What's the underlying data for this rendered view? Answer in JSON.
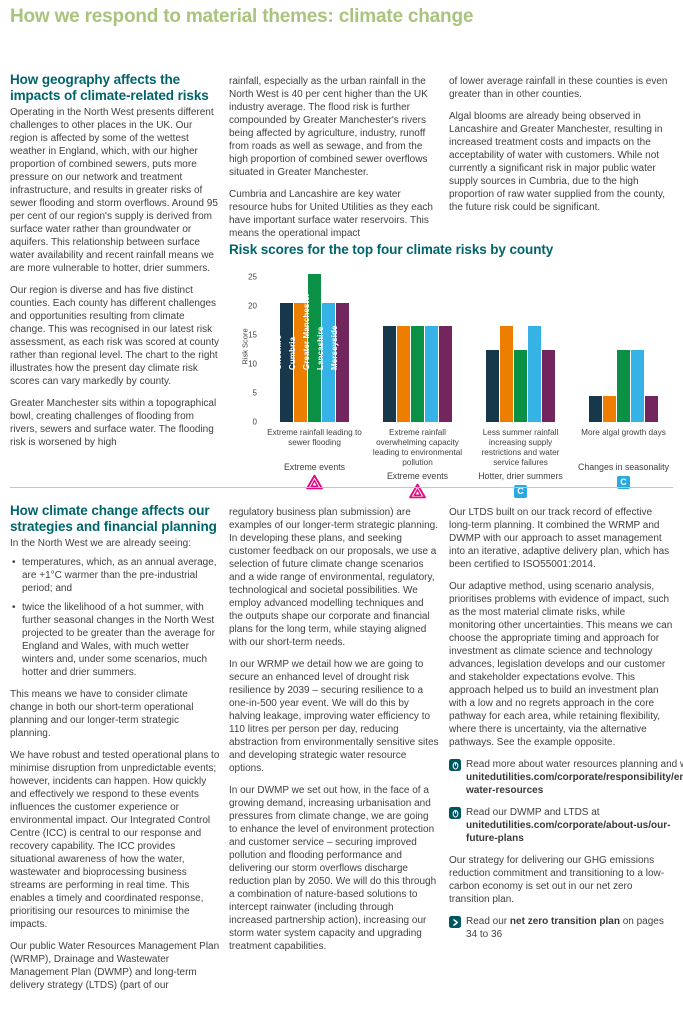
{
  "page": {
    "title": "How we respond to material themes: climate change"
  },
  "top": {
    "heading": "How geography affects the impacts of climate-related risks",
    "col1": [
      "Operating in the North West presents different challenges to other places in the UK. Our region is affected by some of the wettest weather in England, which, with our higher proportion of combined sewers, puts more pressure on our network and treatment infrastructure, and results in greater risks of sewer flooding and storm overflows. Around 95 per cent of our region's supply is derived from surface water rather than groundwater or aquifers. This relationship between surface water availability and recent rainfall means we are more vulnerable to hotter, drier summers.",
      "Our region is diverse and has five distinct counties. Each county has different challenges and opportunities resulting from climate change. This was recognised in our latest risk assessment, as each risk was scored at county rather than regional level. The chart to the right illustrates how the present day climate risk scores can vary markedly by county.",
      "Greater Manchester sits within a topographical bowl, creating challenges of flooding from rivers, sewers and surface water. The flooding risk is worsened by high"
    ],
    "col2": [
      "rainfall, especially as the urban rainfall in the North West is 40 per cent higher than the UK industry average. The flood risk is further compounded by Greater Manchester's rivers being affected by agriculture, industry, runoff from roads as well as sewage, and from the high proportion of combined sewer overflows situated in Greater Manchester.",
      "Cumbria and Lancashire are key water resource hubs for United Utilities as they each have important surface water reservoirs. This means the operational impact"
    ],
    "col3": [
      "of lower average rainfall in these counties is even greater than in other counties.",
      "Algal blooms are already being observed in Lancashire and Greater Manchester, resulting in increased treatment costs and impacts on the acceptability of water with customers. While not currently a significant risk in major public water supply sources in Cumbria, due to the high proportion of raw water supplied from the county, the future risk could be significant."
    ]
  },
  "chart_data": {
    "type": "bar",
    "title": "Risk scores for the top four climate risks by county",
    "ylabel": "Risk Score",
    "ylim": [
      0,
      25
    ],
    "yticks": [
      0,
      5,
      10,
      15,
      20,
      25
    ],
    "grid": false,
    "legend_position": "labels-inside-first-group-bars",
    "categories": [
      "Extreme rainfall leading to sewer flooding",
      "Extreme rainfall overwhelming capacity leading to environmental pollution",
      "Less summer rainfall increasing supply restrictions and water service failures",
      "More algal growth days"
    ],
    "series": [
      {
        "name": "Cheshire",
        "color": "#16384a",
        "values": [
          20.5,
          16.5,
          12.5,
          4.5
        ]
      },
      {
        "name": "Cumbria",
        "color": "#ee7e00",
        "values": [
          20.5,
          16.5,
          16.5,
          4.5
        ]
      },
      {
        "name": "Greater Manchester",
        "color": "#0b9145",
        "values": [
          25.5,
          16.5,
          12.5,
          12.5
        ]
      },
      {
        "name": "Lancashire",
        "color": "#35b3e6",
        "values": [
          20.5,
          16.5,
          16.5,
          12.5
        ]
      },
      {
        "name": "Merseyside",
        "color": "#73265e",
        "values": [
          20.5,
          16.5,
          12.5,
          4.5
        ]
      }
    ],
    "risk_labels": [
      {
        "label": "Extreme events",
        "icon": "warning-triangle-icon"
      },
      {
        "label": "Extreme events",
        "icon": "warning-triangle-icon"
      },
      {
        "label": "Hotter, drier summers",
        "icon": "c-badge-icon",
        "badge": "C"
      },
      {
        "label": "Changes in seasonality",
        "icon": "c-badge-icon",
        "badge": "C"
      }
    ],
    "icon_colors": {
      "warning_triangle": "#e5077d",
      "c_badge": "#29a9e0"
    }
  },
  "bottom": {
    "heading": "How climate change affects our strategies and financial planning",
    "col1": {
      "intro": "In the North West we are already seeing:",
      "bullets": [
        "temperatures, which, as an annual average, are +1°C warmer than the pre-industrial period; and",
        "twice the likelihood of a hot summer, with further seasonal changes in the North West projected to be greater than the average for England and Wales, with much wetter winters and, under some scenarios, much hotter and drier summers."
      ],
      "paras": [
        "This means we have to consider climate change in both our short-term operational planning and our longer-term strategic planning.",
        "We have robust and tested operational plans to minimise disruption from unpredictable events; however, incidents can happen. How quickly and effectively we respond to these events influences the customer experience or environmental impact. Our Integrated Control Centre (ICC) is central to our response and recovery capability. The ICC provides situational awareness of how the water, wastewater and bioprocessing business streams are performing in real time. This enables a timely and coordinated response, prioritising our resources to minimise the impacts.",
        "Our public Water Resources Management Plan (WRMP), Drainage and Wastewater Management Plan (DWMP) and long-term delivery strategy (LTDS) (part of our"
      ]
    },
    "col2": [
      "regulatory business plan submission) are examples of our longer-term strategic planning. In developing these plans, and seeking customer feedback on our proposals, we use a selection of future climate change scenarios and a wide range of environmental, regulatory, technological and societal possibilities. We employ advanced modelling techniques and the outputs shape our corporate and financial plans for the long term, while staying aligned with our short-term needs.",
      "In our WRMP we detail how we are going to secure an enhanced level of drought risk resilience by 2039 – securing resilience to a one-in-500 year event. We will do this by halving leakage, improving water efficiency to 110 litres per person per day, reducing abstraction from environmentally sensitive sites and developing strategic water resource options.",
      "In our DWMP we set out how, in the face of a growing demand, increasing urbanisation and pressures from climate change, we are going to enhance the level of environment protection and customer service – securing improved pollution and flooding performance and delivering our storm overflows discharge reduction plan by 2050. We will do this through a combination of nature-based solutions to intercept rainwater (including through increased partnership action), increasing our storm water system capacity and upgrading treatment capabilities."
    ],
    "col3": {
      "paras": [
        "Our LTDS built on our track record of effective long-term planning. It combined the WRMP and DWMP with our approach to asset management into an iterative, adaptive delivery plan, which has been certified to ISO55001:2014.",
        "Our adaptive method, using scenario analysis, prioritises problems with evidence of impact, such as the most material climate risks, while monitoring other uncertainties. This means we can choose the appropriate timing and approach for investment as climate science and technology advances, legislation develops and our customer and stakeholder expectations evolve. This approach helped us to build an investment plan with a low and no regrets approach in the core pathway for each area, while retaining flexibility, where there is uncertainty, via the alternative pathways. See the example opposite."
      ],
      "links": [
        {
          "icon": "mouse-icon",
          "pre": "Read more about water resources planning and water efficiency at ",
          "bold": "unitedutilities.com/corporate/responsibility/environment/managing-water-resources",
          "post": ""
        },
        {
          "icon": "mouse-icon",
          "pre": "Read our DWMP and LTDS at ",
          "bold": "unitedutilities.com/corporate/about-us/our-future-plans",
          "post": ""
        }
      ],
      "para_ghg": "Our strategy for delivering our GHG emissions reduction commitment and transitioning to a low-carbon economy is set out in our net zero transition plan.",
      "link_netzero": {
        "icon": "chevron-icon",
        "pre": "Read our ",
        "bold": "net zero transition plan",
        "post": " on pages 34 to 36"
      }
    }
  },
  "colors": {
    "page_title_green": "#a9c47d",
    "heading_teal": "#00646b",
    "body_text": "#414140",
    "divider_gray": "#c4c4c4",
    "link_icon_teal": "#00565f"
  }
}
